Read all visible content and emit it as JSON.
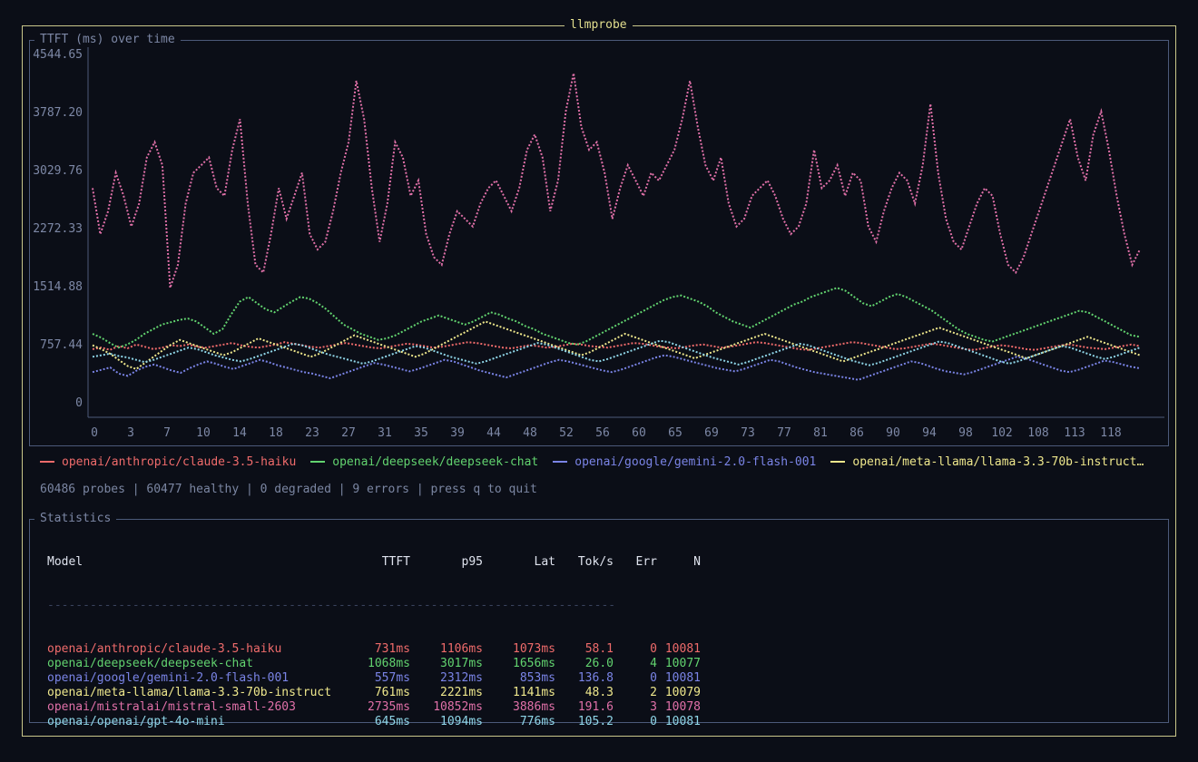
{
  "app": {
    "title": "llmprobe"
  },
  "chart_panel": {
    "title": "TTFT (ms) over time"
  },
  "stats_panel": {
    "title": "Statistics"
  },
  "status": {
    "text": "60486 probes | 60477 healthy | 0 degraded | 9 errors | press q to quit"
  },
  "colors": {
    "background": "#0b0e17",
    "outer_border": "#c9c78a",
    "inner_border": "#4c5a7a",
    "axis_label": "#7d88a6"
  },
  "chart_data": {
    "type": "line",
    "title": "TTFT (ms) over time",
    "xlabel": "",
    "ylabel": "",
    "x_ticks": [
      "0",
      "3",
      "7",
      "10",
      "14",
      "18",
      "23",
      "27",
      "31",
      "35",
      "39",
      "44",
      "48",
      "52",
      "56",
      "60",
      "65",
      "69",
      "73",
      "77",
      "81",
      "86",
      "90",
      "94",
      "98",
      "102",
      "108",
      "113",
      "118"
    ],
    "y_ticks": [
      "4544.65",
      "3787.20",
      "3029.76",
      "2272.33",
      "1514.88",
      "757.44",
      "0"
    ],
    "ylim": [
      0,
      4544.65
    ],
    "xlim": [
      0,
      120
    ],
    "grid": false,
    "legend_position": "bottom",
    "series": [
      {
        "name": "openai/anthropic/claude-3.5-haiku",
        "color": "#ef6b6b",
        "values": [
          700,
          720,
          690,
          740,
          710,
          760,
          730,
          700,
          720,
          750,
          740,
          760,
          730,
          720,
          740,
          760,
          780,
          750,
          730,
          720,
          740,
          760,
          790,
          770,
          750,
          730,
          720,
          740,
          760,
          780,
          760,
          740,
          720,
          710,
          730,
          750,
          770,
          760,
          740,
          720,
          730,
          750,
          770,
          790,
          780,
          760,
          740,
          720,
          710,
          730,
          750,
          740,
          720,
          730,
          750,
          770,
          760,
          740,
          730,
          720,
          740,
          760,
          780,
          770,
          750,
          730,
          720,
          710,
          730,
          750,
          760,
          740,
          720,
          730,
          750,
          770,
          790,
          780,
          760,
          740,
          720,
          700,
          690,
          710,
          730,
          750,
          770,
          790,
          780,
          760,
          740,
          720,
          700,
          710,
          730,
          750,
          770,
          760,
          740,
          720,
          700,
          690,
          710,
          730,
          750,
          740,
          720,
          700,
          690,
          710,
          730,
          750,
          760,
          740,
          720,
          710,
          700,
          720,
          740,
          760,
          740
        ]
      },
      {
        "name": "openai/deepseek/deepseek-chat",
        "color": "#62d36f",
        "values": [
          900,
          850,
          780,
          720,
          760,
          820,
          900,
          960,
          1020,
          1050,
          1080,
          1100,
          1060,
          980,
          900,
          960,
          1150,
          1320,
          1380,
          1300,
          1220,
          1180,
          1250,
          1320,
          1380,
          1360,
          1300,
          1220,
          1120,
          1020,
          960,
          900,
          860,
          820,
          840,
          880,
          940,
          1000,
          1060,
          1100,
          1140,
          1100,
          1060,
          1020,
          1060,
          1120,
          1180,
          1150,
          1100,
          1060,
          1000,
          960,
          900,
          860,
          820,
          780,
          760,
          800,
          860,
          920,
          980,
          1040,
          1100,
          1160,
          1220,
          1280,
          1340,
          1380,
          1400,
          1360,
          1320,
          1260,
          1180,
          1120,
          1060,
          1020,
          980,
          1040,
          1100,
          1160,
          1220,
          1280,
          1320,
          1380,
          1420,
          1460,
          1500,
          1460,
          1380,
          1300,
          1260,
          1320,
          1380,
          1420,
          1380,
          1320,
          1260,
          1200,
          1120,
          1040,
          960,
          900,
          860,
          820,
          800,
          840,
          880,
          920,
          960,
          1000,
          1040,
          1080,
          1120,
          1160,
          1200,
          1180,
          1120,
          1060,
          1000,
          940,
          880,
          860
        ]
      },
      {
        "name": "openai/google/gemini-2.0-flash-001",
        "color": "#7a84e6",
        "values": [
          400,
          430,
          460,
          380,
          350,
          420,
          470,
          500,
          460,
          420,
          390,
          450,
          500,
          540,
          510,
          470,
          440,
          480,
          520,
          560,
          530,
          490,
          460,
          430,
          400,
          380,
          350,
          320,
          360,
          400,
          440,
          480,
          520,
          500,
          470,
          440,
          410,
          440,
          480,
          520,
          560,
          540,
          500,
          460,
          420,
          390,
          360,
          330,
          370,
          410,
          450,
          490,
          530,
          560,
          540,
          510,
          480,
          450,
          420,
          400,
          430,
          470,
          510,
          550,
          590,
          620,
          600,
          570,
          540,
          510,
          480,
          450,
          430,
          410,
          440,
          480,
          520,
          560,
          540,
          500,
          460,
          430,
          400,
          380,
          360,
          340,
          320,
          300,
          340,
          380,
          420,
          460,
          500,
          540,
          520,
          480,
          440,
          410,
          390,
          370,
          400,
          440,
          480,
          520,
          560,
          600,
          580,
          540,
          500,
          460,
          420,
          400,
          430,
          470,
          510,
          550,
          530,
          500,
          470,
          450
        ]
      },
      {
        "name": "openai/meta-llama/llama-3.3-70b-instruct",
        "color": "#eee78c",
        "values": [
          750,
          700,
          640,
          560,
          480,
          440,
          520,
          600,
          680,
          760,
          820,
          780,
          740,
          700,
          660,
          620,
          660,
          720,
          780,
          840,
          800,
          760,
          720,
          680,
          640,
          600,
          640,
          700,
          760,
          820,
          880,
          840,
          800,
          760,
          720,
          680,
          640,
          600,
          640,
          700,
          760,
          820,
          880,
          940,
          1000,
          1060,
          1020,
          980,
          940,
          900,
          860,
          820,
          780,
          740,
          700,
          660,
          620,
          660,
          720,
          780,
          840,
          900,
          860,
          820,
          780,
          740,
          700,
          660,
          620,
          580,
          620,
          660,
          700,
          740,
          780,
          820,
          860,
          900,
          860,
          820,
          780,
          740,
          700,
          660,
          620,
          580,
          540,
          580,
          620,
          660,
          700,
          740,
          780,
          820,
          860,
          900,
          940,
          980,
          940,
          900,
          860,
          820,
          780,
          740,
          700,
          660,
          620,
          580,
          620,
          660,
          700,
          740,
          780,
          820,
          860,
          820,
          780,
          740,
          700,
          660,
          620
        ]
      },
      {
        "name": "openai/mistralai/mistral-small-2603",
        "color": "#e070a8",
        "values": [
          2800,
          2200,
          2500,
          3000,
          2700,
          2300,
          2600,
          3200,
          3400,
          3100,
          1500,
          1800,
          2600,
          3000,
          3100,
          3200,
          2800,
          2700,
          3300,
          3700,
          2600,
          1800,
          1700,
          2200,
          2800,
          2400,
          2700,
          3000,
          2200,
          2000,
          2100,
          2500,
          3000,
          3400,
          4200,
          3700,
          2800,
          2100,
          2600,
          3400,
          3200,
          2700,
          2900,
          2200,
          1900,
          1800,
          2200,
          2500,
          2400,
          2300,
          2600,
          2800,
          2900,
          2700,
          2500,
          2800,
          3300,
          3500,
          3200,
          2500,
          2900,
          3800,
          4300,
          3600,
          3300,
          3400,
          3000,
          2400,
          2800,
          3100,
          2900,
          2700,
          3000,
          2900,
          3100,
          3300,
          3700,
          4200,
          3600,
          3100,
          2900,
          3200,
          2600,
          2300,
          2400,
          2700,
          2800,
          2900,
          2700,
          2400,
          2200,
          2300,
          2600,
          3300,
          2800,
          2900,
          3100,
          2700,
          3000,
          2900,
          2300,
          2100,
          2500,
          2800,
          3000,
          2900,
          2600,
          3100,
          3900,
          3000,
          2400,
          2100,
          2000,
          2300,
          2600,
          2800,
          2700,
          2200,
          1800,
          1700,
          1900,
          2200,
          2500,
          2800,
          3100,
          3400,
          3700,
          3200,
          2900,
          3500,
          3800,
          3300,
          2700,
          2200,
          1800,
          2000
        ]
      },
      {
        "name": "openai/openai/gpt-4o-mini",
        "color": "#8fd6e8",
        "values": [
          600,
          620,
          640,
          610,
          590,
          560,
          530,
          560,
          600,
          640,
          680,
          720,
          700,
          660,
          620,
          590,
          560,
          540,
          570,
          610,
          650,
          690,
          730,
          770,
          750,
          710,
          670,
          630,
          600,
          570,
          540,
          510,
          540,
          580,
          620,
          660,
          700,
          740,
          720,
          680,
          640,
          600,
          570,
          540,
          510,
          540,
          580,
          620,
          660,
          700,
          740,
          780,
          760,
          720,
          680,
          640,
          600,
          560,
          540,
          570,
          610,
          650,
          690,
          730,
          770,
          810,
          790,
          750,
          710,
          670,
          630,
          590,
          560,
          530,
          500,
          530,
          570,
          610,
          650,
          690,
          730,
          770,
          750,
          710,
          670,
          630,
          590,
          550,
          520,
          490,
          520,
          560,
          600,
          640,
          680,
          720,
          760,
          800,
          780,
          740,
          700,
          660,
          620,
          580,
          540,
          510,
          540,
          580,
          620,
          660,
          700,
          740,
          720,
          680,
          640,
          600,
          570,
          600,
          640,
          680,
          720
        ]
      }
    ]
  },
  "table": {
    "headers": {
      "model": "Model",
      "ttft": "TTFT",
      "p95": "p95",
      "lat": "Lat",
      "tok": "Tok/s",
      "err": "Err",
      "n": "N"
    },
    "separator": "--------------------------------------------------------------------------------",
    "rows": [
      {
        "model": "openai/anthropic/claude-3.5-haiku",
        "ttft": "731ms",
        "p95": "1106ms",
        "lat": "1073ms",
        "tok": "58.1",
        "err": "0",
        "n": "10081",
        "color": "#ef6b6b"
      },
      {
        "model": "openai/deepseek/deepseek-chat",
        "ttft": "1068ms",
        "p95": "3017ms",
        "lat": "1656ms",
        "tok": "26.0",
        "err": "4",
        "n": "10077",
        "color": "#62d36f"
      },
      {
        "model": "openai/google/gemini-2.0-flash-001",
        "ttft": "557ms",
        "p95": "2312ms",
        "lat": "853ms",
        "tok": "136.8",
        "err": "0",
        "n": "10081",
        "color": "#7a84e6"
      },
      {
        "model": "openai/meta-llama/llama-3.3-70b-instruct",
        "ttft": "761ms",
        "p95": "2221ms",
        "lat": "1141ms",
        "tok": "48.3",
        "err": "2",
        "n": "10079",
        "color": "#eee78c"
      },
      {
        "model": "openai/mistralai/mistral-small-2603",
        "ttft": "2735ms",
        "p95": "10852ms",
        "lat": "3886ms",
        "tok": "191.6",
        "err": "3",
        "n": "10078",
        "color": "#e070a8"
      },
      {
        "model": "openai/openai/gpt-4o-mini",
        "ttft": "645ms",
        "p95": "1094ms",
        "lat": "776ms",
        "tok": "105.2",
        "err": "0",
        "n": "10081",
        "color": "#8fd6e8"
      }
    ]
  },
  "legend": {
    "items": [
      {
        "label": "openai/anthropic/claude-3.5-haiku",
        "color": "#ef6b6b"
      },
      {
        "label": "openai/deepseek/deepseek-chat",
        "color": "#62d36f"
      },
      {
        "label": "openai/google/gemini-2.0-flash-001",
        "color": "#7a84e6"
      },
      {
        "label": "openai/meta-llama/llama-3.3-70b-instruct…",
        "color": "#eee78c"
      }
    ]
  }
}
